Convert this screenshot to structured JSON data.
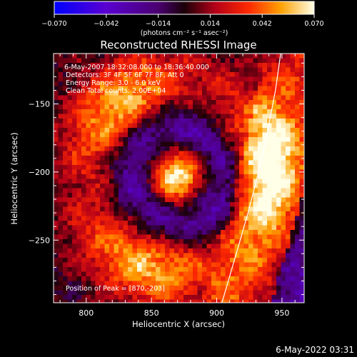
{
  "colorbar": {
    "min": -0.07,
    "max": 0.07,
    "ticks": [
      {
        "value": -0.07,
        "label": "−0.070"
      },
      {
        "value": -0.042,
        "label": "−0.042"
      },
      {
        "value": -0.014,
        "label": "−0.014"
      },
      {
        "value": 0.014,
        "label": "0.014"
      },
      {
        "value": 0.042,
        "label": "0.042"
      },
      {
        "value": 0.07,
        "label": "0.070"
      }
    ],
    "units_label": "(photons cm⁻² s⁻¹ asec⁻²)",
    "stops": [
      {
        "v": 0.0,
        "color": "#0000ff"
      },
      {
        "v": 0.2,
        "color": "#5a00d0"
      },
      {
        "v": 0.4,
        "color": "#4a0070"
      },
      {
        "v": 0.5,
        "color": "#1a0008"
      },
      {
        "v": 0.62,
        "color": "#b40018"
      },
      {
        "v": 0.75,
        "color": "#ff2a00"
      },
      {
        "v": 0.87,
        "color": "#ffa000"
      },
      {
        "v": 1.0,
        "color": "#ffffe8"
      }
    ]
  },
  "chart_data": {
    "type": "heatmap",
    "title": "Reconstructed RHESSI Image",
    "xlabel": "Heliocentric X (arcsec)",
    "ylabel": "Heliocentric Y (arcsec)",
    "xlim": [
      775,
      967
    ],
    "ylim": [
      -296,
      -113
    ],
    "xticks": [
      {
        "value": 800,
        "label": "800"
      },
      {
        "value": 850,
        "label": "850"
      },
      {
        "value": 900,
        "label": "900"
      },
      {
        "value": 950,
        "label": "950"
      }
    ],
    "yticks": [
      {
        "value": -150,
        "label": "−150"
      },
      {
        "value": -200,
        "label": "−200"
      },
      {
        "value": -250,
        "label": "−250"
      }
    ],
    "peak": {
      "x": 870,
      "y": -203
    },
    "limb_curve": [
      [
        904,
        -296
      ],
      [
        915,
        -260
      ],
      [
        924,
        -230
      ],
      [
        932,
        -200
      ],
      [
        939,
        -170
      ],
      [
        945,
        -140
      ],
      [
        949,
        -113
      ]
    ],
    "annotations": [
      "6-May-2007 18:32:08.000 to 18:36:40.000",
      "Detectors: 3F 4F 5F 6F 7F 8F, Att 0",
      "Energy Range: 3.0 - 6.0 keV",
      "Clean     Total counts: 2.00E+04"
    ],
    "peak_label": "Position of Peak = [870,-203]",
    "grid": false
  },
  "footer": {
    "timestamp": "6-May-2022 03:31"
  }
}
